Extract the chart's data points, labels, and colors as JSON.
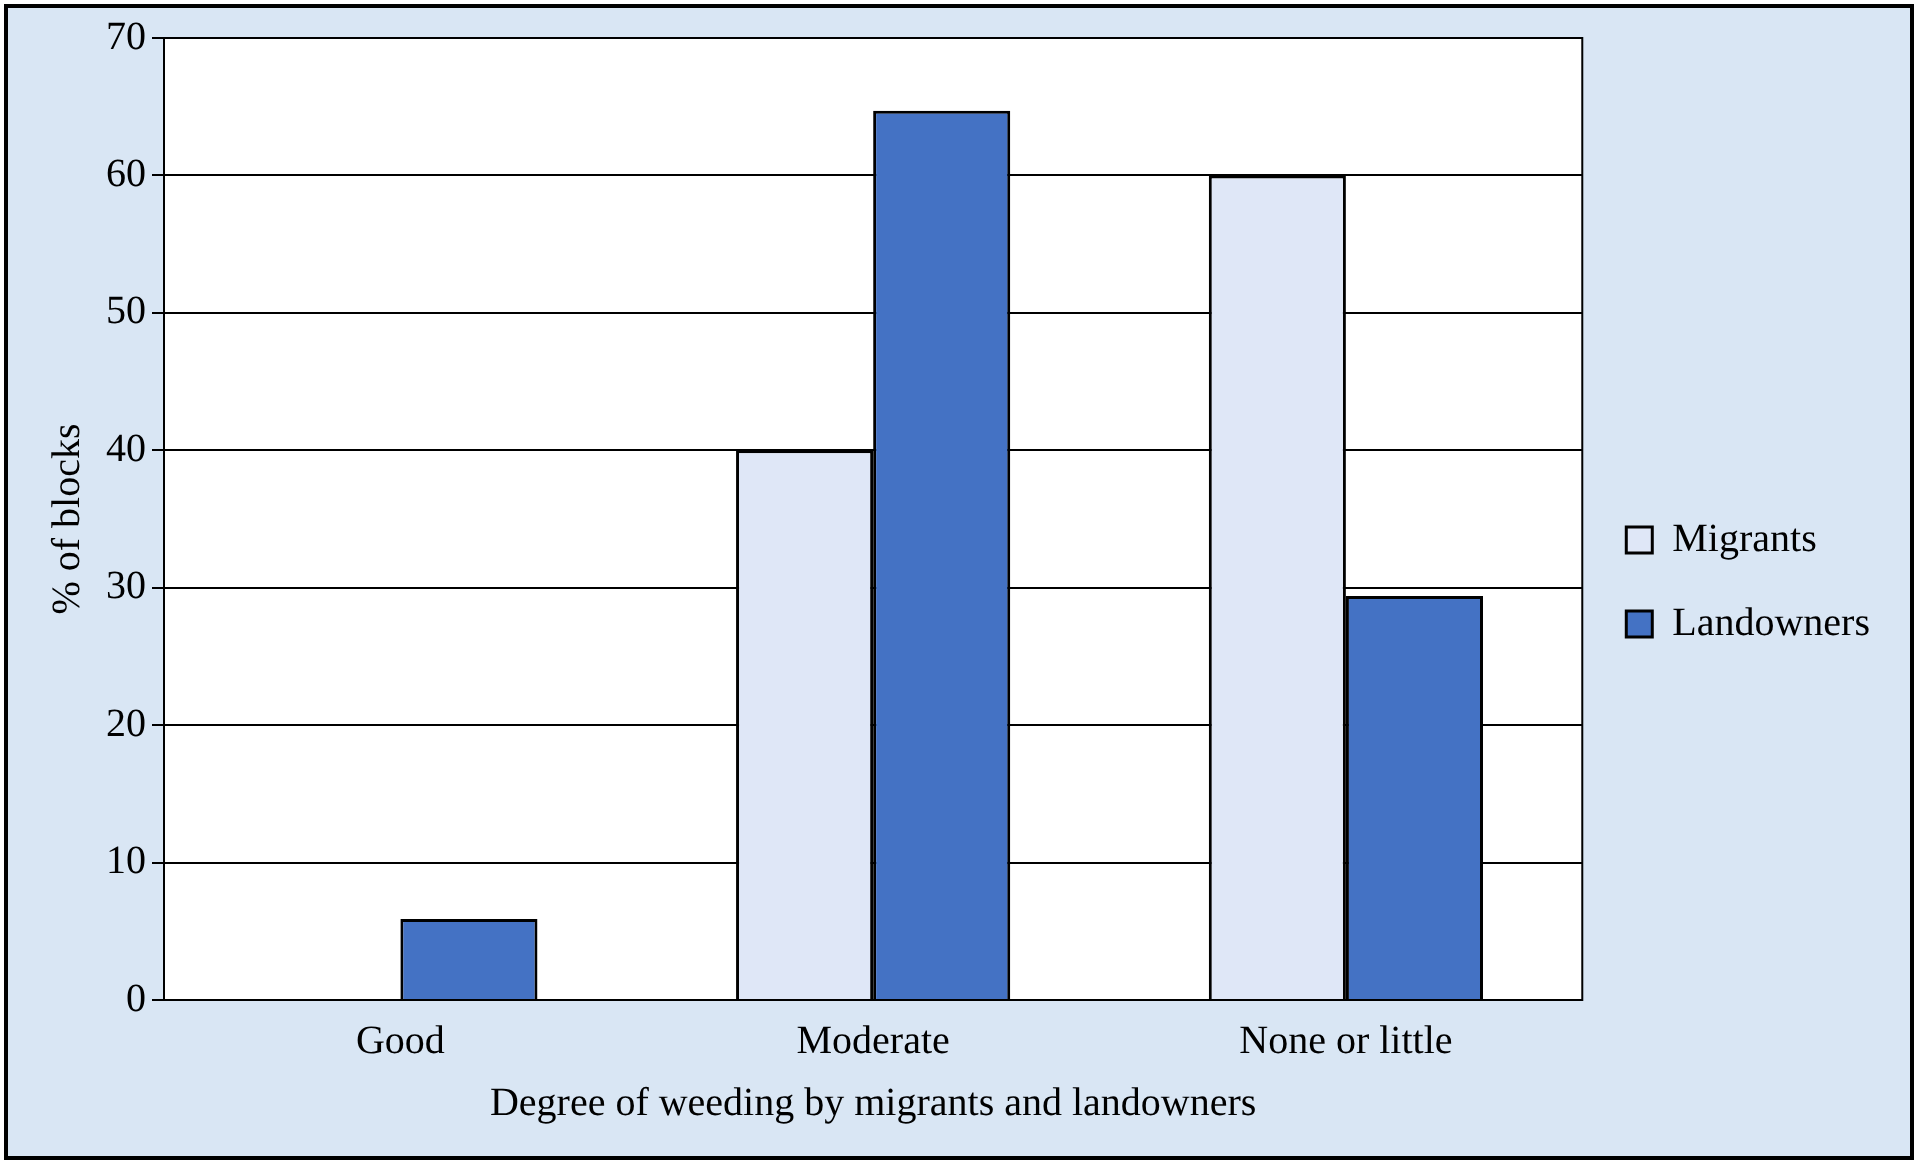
{
  "chart_data": {
    "type": "bar",
    "xlabel": "Degree of weeding by migrants and landowners",
    "ylabel": "% of blocks",
    "categories": [
      "Good",
      "Moderate",
      "None or little"
    ],
    "series": [
      {
        "name": "Migrants",
        "color": "#dfe7f7",
        "values": [
          0,
          40,
          60
        ]
      },
      {
        "name": "Landowners",
        "color": "#4472c4",
        "values": [
          5.9,
          64.7,
          29.4
        ]
      }
    ],
    "ylim": [
      0,
      70
    ],
    "yticks": [
      0,
      10,
      20,
      30,
      40,
      50,
      60,
      70
    ],
    "grid": "y",
    "legend": "right"
  }
}
